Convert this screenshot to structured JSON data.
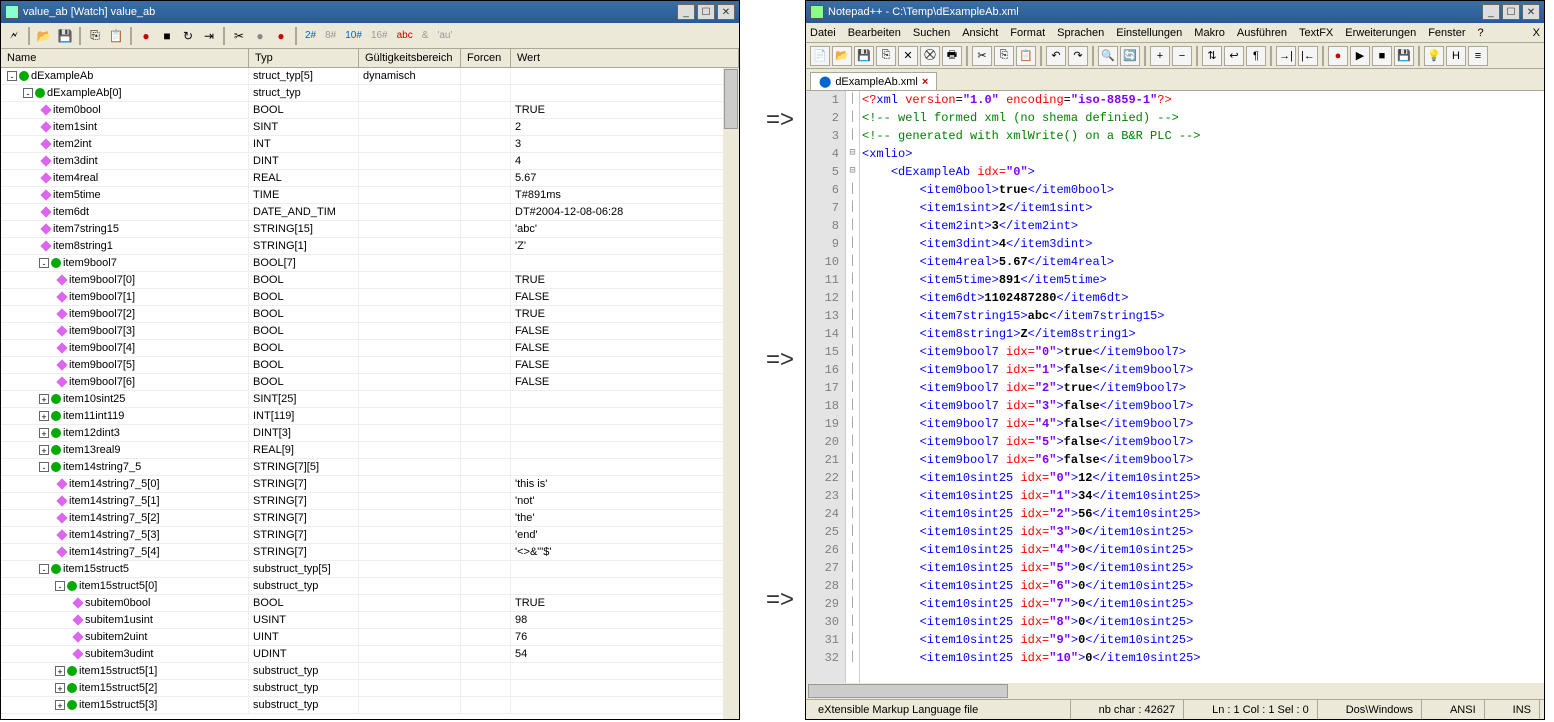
{
  "left": {
    "title": "value_ab [Watch] value_ab",
    "toolbar_modes": [
      "2#",
      "8#",
      "10#",
      "16#",
      "abc",
      "&",
      "'au'"
    ],
    "columns": {
      "name": "Name",
      "typ": "Typ",
      "gult": "Gültigkeitsbereich",
      "forc": "Forcen",
      "wert": "Wert"
    },
    "rows": [
      {
        "indent": 0,
        "exp": "-",
        "ico": "green",
        "name": "dExampleAb",
        "typ": "struct_typ[5]",
        "gult": "dynamisch",
        "wert": ""
      },
      {
        "indent": 1,
        "exp": "-",
        "ico": "green",
        "name": "dExampleAb[0]",
        "typ": "struct_typ",
        "wert": ""
      },
      {
        "indent": 2,
        "ico": "d",
        "name": "item0bool",
        "typ": "BOOL",
        "wert": "TRUE"
      },
      {
        "indent": 2,
        "ico": "d",
        "name": "item1sint",
        "typ": "SINT",
        "wert": "2"
      },
      {
        "indent": 2,
        "ico": "d",
        "name": "item2int",
        "typ": "INT",
        "wert": "3"
      },
      {
        "indent": 2,
        "ico": "d",
        "name": "item3dint",
        "typ": "DINT",
        "wert": "4"
      },
      {
        "indent": 2,
        "ico": "d",
        "name": "item4real",
        "typ": "REAL",
        "wert": "5.67"
      },
      {
        "indent": 2,
        "ico": "d",
        "name": "item5time",
        "typ": "TIME",
        "wert": "T#891ms"
      },
      {
        "indent": 2,
        "ico": "d",
        "name": "item6dt",
        "typ": "DATE_AND_TIM",
        "wert": "DT#2004-12-08-06:28"
      },
      {
        "indent": 2,
        "ico": "d",
        "name": "item7string15",
        "typ": "STRING[15]",
        "wert": "'abc'"
      },
      {
        "indent": 2,
        "ico": "d",
        "name": "item8string1",
        "typ": "STRING[1]",
        "wert": "'Z'"
      },
      {
        "indent": 2,
        "exp": "-",
        "ico": "green",
        "name": "item9bool7",
        "typ": "BOOL[7]",
        "wert": ""
      },
      {
        "indent": 3,
        "ico": "d",
        "name": "item9bool7[0]",
        "typ": "BOOL",
        "wert": "TRUE"
      },
      {
        "indent": 3,
        "ico": "d",
        "name": "item9bool7[1]",
        "typ": "BOOL",
        "wert": "FALSE"
      },
      {
        "indent": 3,
        "ico": "d",
        "name": "item9bool7[2]",
        "typ": "BOOL",
        "wert": "TRUE"
      },
      {
        "indent": 3,
        "ico": "d",
        "name": "item9bool7[3]",
        "typ": "BOOL",
        "wert": "FALSE"
      },
      {
        "indent": 3,
        "ico": "d",
        "name": "item9bool7[4]",
        "typ": "BOOL",
        "wert": "FALSE"
      },
      {
        "indent": 3,
        "ico": "d",
        "name": "item9bool7[5]",
        "typ": "BOOL",
        "wert": "FALSE"
      },
      {
        "indent": 3,
        "ico": "d",
        "name": "item9bool7[6]",
        "typ": "BOOL",
        "wert": "FALSE"
      },
      {
        "indent": 2,
        "exp": "+",
        "ico": "green",
        "name": "item10sint25",
        "typ": "SINT[25]",
        "wert": ""
      },
      {
        "indent": 2,
        "exp": "+",
        "ico": "green",
        "name": "item11int119",
        "typ": "INT[119]",
        "wert": ""
      },
      {
        "indent": 2,
        "exp": "+",
        "ico": "green",
        "name": "item12dint3",
        "typ": "DINT[3]",
        "wert": ""
      },
      {
        "indent": 2,
        "exp": "+",
        "ico": "green",
        "name": "item13real9",
        "typ": "REAL[9]",
        "wert": ""
      },
      {
        "indent": 2,
        "exp": "-",
        "ico": "green",
        "name": "item14string7_5",
        "typ": "STRING[7][5]",
        "wert": ""
      },
      {
        "indent": 3,
        "ico": "d",
        "name": "item14string7_5[0]",
        "typ": "STRING[7]",
        "wert": "'this is'"
      },
      {
        "indent": 3,
        "ico": "d",
        "name": "item14string7_5[1]",
        "typ": "STRING[7]",
        "wert": "'not'"
      },
      {
        "indent": 3,
        "ico": "d",
        "name": "item14string7_5[2]",
        "typ": "STRING[7]",
        "wert": "'the'"
      },
      {
        "indent": 3,
        "ico": "d",
        "name": "item14string7_5[3]",
        "typ": "STRING[7]",
        "wert": "'end'"
      },
      {
        "indent": 3,
        "ico": "d",
        "name": "item14string7_5[4]",
        "typ": "STRING[7]",
        "wert": "'<>&\"'$'"
      },
      {
        "indent": 2,
        "exp": "-",
        "ico": "green",
        "name": "item15struct5",
        "typ": "substruct_typ[5]",
        "wert": ""
      },
      {
        "indent": 3,
        "exp": "-",
        "ico": "green",
        "name": "item15struct5[0]",
        "typ": "substruct_typ",
        "wert": ""
      },
      {
        "indent": 4,
        "ico": "d",
        "name": "subitem0bool",
        "typ": "BOOL",
        "wert": "TRUE"
      },
      {
        "indent": 4,
        "ico": "d",
        "name": "subitem1usint",
        "typ": "USINT",
        "wert": "98"
      },
      {
        "indent": 4,
        "ico": "d",
        "name": "subitem2uint",
        "typ": "UINT",
        "wert": "76"
      },
      {
        "indent": 4,
        "ico": "d",
        "name": "subitem3udint",
        "typ": "UDINT",
        "wert": "54"
      },
      {
        "indent": 3,
        "exp": "+",
        "ico": "green",
        "name": "item15struct5[1]",
        "typ": "substruct_typ",
        "wert": ""
      },
      {
        "indent": 3,
        "exp": "+",
        "ico": "green",
        "name": "item15struct5[2]",
        "typ": "substruct_typ",
        "wert": ""
      },
      {
        "indent": 3,
        "exp": "+",
        "ico": "green",
        "name": "item15struct5[3]",
        "typ": "substruct_typ",
        "wert": ""
      }
    ]
  },
  "arrows": [
    "=>",
    "=>",
    "=>"
  ],
  "right": {
    "title": "Notepad++ - C:\\Temp\\dExampleAb.xml",
    "menu": [
      "Datei",
      "Bearbeiten",
      "Suchen",
      "Ansicht",
      "Format",
      "Sprachen",
      "Einstellungen",
      "Makro",
      "Ausführen",
      "TextFX",
      "Erweiterungen",
      "Fenster",
      "?",
      "X"
    ],
    "tab": "dExampleAb.xml",
    "lines": [
      {
        "n": 1,
        "html": "<span class='pi'>&lt;?</span><span class='tag'>xml</span> <span class='attr'>version</span>=<span class='aval'>\"1.0\"</span> <span class='attr'>encoding</span>=<span class='aval'>\"iso-8859-1\"</span><span class='pi'>?&gt;</span>"
      },
      {
        "n": 2,
        "html": "<span class='cmt'>&lt;!-- well formed xml (no shema definied) --&gt;</span>"
      },
      {
        "n": 3,
        "html": "<span class='cmt'>&lt;!-- generated with xmlWrite() on a B&amp;R PLC --&gt;</span>"
      },
      {
        "n": 4,
        "fold": "-",
        "html": "<span class='tag'>&lt;xmlio&gt;</span>"
      },
      {
        "n": 5,
        "fold": "-",
        "html": "    <span class='tag'>&lt;dExampleAb</span> <span class='attr'>idx=</span><span class='aval'>\"0\"</span><span class='tag'>&gt;</span>"
      },
      {
        "n": 6,
        "html": "        <span class='tag'>&lt;item0bool&gt;</span><span class='txt'>true</span><span class='tag'>&lt;/item0bool&gt;</span>"
      },
      {
        "n": 7,
        "html": "        <span class='tag'>&lt;item1sint&gt;</span><span class='txt'>2</span><span class='tag'>&lt;/item1sint&gt;</span>"
      },
      {
        "n": 8,
        "html": "        <span class='tag'>&lt;item2int&gt;</span><span class='txt'>3</span><span class='tag'>&lt;/item2int&gt;</span>"
      },
      {
        "n": 9,
        "html": "        <span class='tag'>&lt;item3dint&gt;</span><span class='txt'>4</span><span class='tag'>&lt;/item3dint&gt;</span>"
      },
      {
        "n": 10,
        "html": "        <span class='tag'>&lt;item4real&gt;</span><span class='txt'>5.67</span><span class='tag'>&lt;/item4real&gt;</span>"
      },
      {
        "n": 11,
        "html": "        <span class='tag'>&lt;item5time&gt;</span><span class='txt'>891</span><span class='tag'>&lt;/item5time&gt;</span>"
      },
      {
        "n": 12,
        "html": "        <span class='tag'>&lt;item6dt&gt;</span><span class='txt'>1102487280</span><span class='tag'>&lt;/item6dt&gt;</span>"
      },
      {
        "n": 13,
        "html": "        <span class='tag'>&lt;item7string15&gt;</span><span class='txt'>abc</span><span class='tag'>&lt;/item7string15&gt;</span>"
      },
      {
        "n": 14,
        "html": "        <span class='tag'>&lt;item8string1&gt;</span><span class='txt'>Z</span><span class='tag'>&lt;/item8string1&gt;</span>"
      },
      {
        "n": 15,
        "html": "        <span class='tag'>&lt;item9bool7</span> <span class='attr'>idx=</span><span class='aval'>\"0\"</span><span class='tag'>&gt;</span><span class='txt'>true</span><span class='tag'>&lt;/item9bool7&gt;</span>"
      },
      {
        "n": 16,
        "html": "        <span class='tag'>&lt;item9bool7</span> <span class='attr'>idx=</span><span class='aval'>\"1\"</span><span class='tag'>&gt;</span><span class='txt'>false</span><span class='tag'>&lt;/item9bool7&gt;</span>"
      },
      {
        "n": 17,
        "html": "        <span class='tag'>&lt;item9bool7</span> <span class='attr'>idx=</span><span class='aval'>\"2\"</span><span class='tag'>&gt;</span><span class='txt'>true</span><span class='tag'>&lt;/item9bool7&gt;</span>"
      },
      {
        "n": 18,
        "html": "        <span class='tag'>&lt;item9bool7</span> <span class='attr'>idx=</span><span class='aval'>\"3\"</span><span class='tag'>&gt;</span><span class='txt'>false</span><span class='tag'>&lt;/item9bool7&gt;</span>"
      },
      {
        "n": 19,
        "html": "        <span class='tag'>&lt;item9bool7</span> <span class='attr'>idx=</span><span class='aval'>\"4\"</span><span class='tag'>&gt;</span><span class='txt'>false</span><span class='tag'>&lt;/item9bool7&gt;</span>"
      },
      {
        "n": 20,
        "html": "        <span class='tag'>&lt;item9bool7</span> <span class='attr'>idx=</span><span class='aval'>\"5\"</span><span class='tag'>&gt;</span><span class='txt'>false</span><span class='tag'>&lt;/item9bool7&gt;</span>"
      },
      {
        "n": 21,
        "html": "        <span class='tag'>&lt;item9bool7</span> <span class='attr'>idx=</span><span class='aval'>\"6\"</span><span class='tag'>&gt;</span><span class='txt'>false</span><span class='tag'>&lt;/item9bool7&gt;</span>"
      },
      {
        "n": 22,
        "html": "        <span class='tag'>&lt;item10sint25</span> <span class='attr'>idx=</span><span class='aval'>\"0\"</span><span class='tag'>&gt;</span><span class='txt'>12</span><span class='tag'>&lt;/item10sint25&gt;</span>"
      },
      {
        "n": 23,
        "html": "        <span class='tag'>&lt;item10sint25</span> <span class='attr'>idx=</span><span class='aval'>\"1\"</span><span class='tag'>&gt;</span><span class='txt'>34</span><span class='tag'>&lt;/item10sint25&gt;</span>"
      },
      {
        "n": 24,
        "html": "        <span class='tag'>&lt;item10sint25</span> <span class='attr'>idx=</span><span class='aval'>\"2\"</span><span class='tag'>&gt;</span><span class='txt'>56</span><span class='tag'>&lt;/item10sint25&gt;</span>"
      },
      {
        "n": 25,
        "html": "        <span class='tag'>&lt;item10sint25</span> <span class='attr'>idx=</span><span class='aval'>\"3\"</span><span class='tag'>&gt;</span><span class='txt'>0</span><span class='tag'>&lt;/item10sint25&gt;</span>"
      },
      {
        "n": 26,
        "html": "        <span class='tag'>&lt;item10sint25</span> <span class='attr'>idx=</span><span class='aval'>\"4\"</span><span class='tag'>&gt;</span><span class='txt'>0</span><span class='tag'>&lt;/item10sint25&gt;</span>"
      },
      {
        "n": 27,
        "html": "        <span class='tag'>&lt;item10sint25</span> <span class='attr'>idx=</span><span class='aval'>\"5\"</span><span class='tag'>&gt;</span><span class='txt'>0</span><span class='tag'>&lt;/item10sint25&gt;</span>"
      },
      {
        "n": 28,
        "html": "        <span class='tag'>&lt;item10sint25</span> <span class='attr'>idx=</span><span class='aval'>\"6\"</span><span class='tag'>&gt;</span><span class='txt'>0</span><span class='tag'>&lt;/item10sint25&gt;</span>"
      },
      {
        "n": 29,
        "html": "        <span class='tag'>&lt;item10sint25</span> <span class='attr'>idx=</span><span class='aval'>\"7\"</span><span class='tag'>&gt;</span><span class='txt'>0</span><span class='tag'>&lt;/item10sint25&gt;</span>"
      },
      {
        "n": 30,
        "html": "        <span class='tag'>&lt;item10sint25</span> <span class='attr'>idx=</span><span class='aval'>\"8\"</span><span class='tag'>&gt;</span><span class='txt'>0</span><span class='tag'>&lt;/item10sint25&gt;</span>"
      },
      {
        "n": 31,
        "html": "        <span class='tag'>&lt;item10sint25</span> <span class='attr'>idx=</span><span class='aval'>\"9\"</span><span class='tag'>&gt;</span><span class='txt'>0</span><span class='tag'>&lt;/item10sint25&gt;</span>"
      },
      {
        "n": 32,
        "html": "        <span class='tag'>&lt;item10sint25</span> <span class='attr'>idx=</span><span class='aval'>\"10\"</span><span class='tag'>&gt;</span><span class='txt'>0</span><span class='tag'>&lt;/item10sint25&gt;</span>"
      }
    ],
    "status": {
      "lang": "eXtensible Markup Language file",
      "chars": "nb char : 42627",
      "pos": "Ln : 1   Col : 1   Sel : 0",
      "eol": "Dos\\Windows",
      "enc": "ANSI",
      "ins": "INS"
    }
  }
}
